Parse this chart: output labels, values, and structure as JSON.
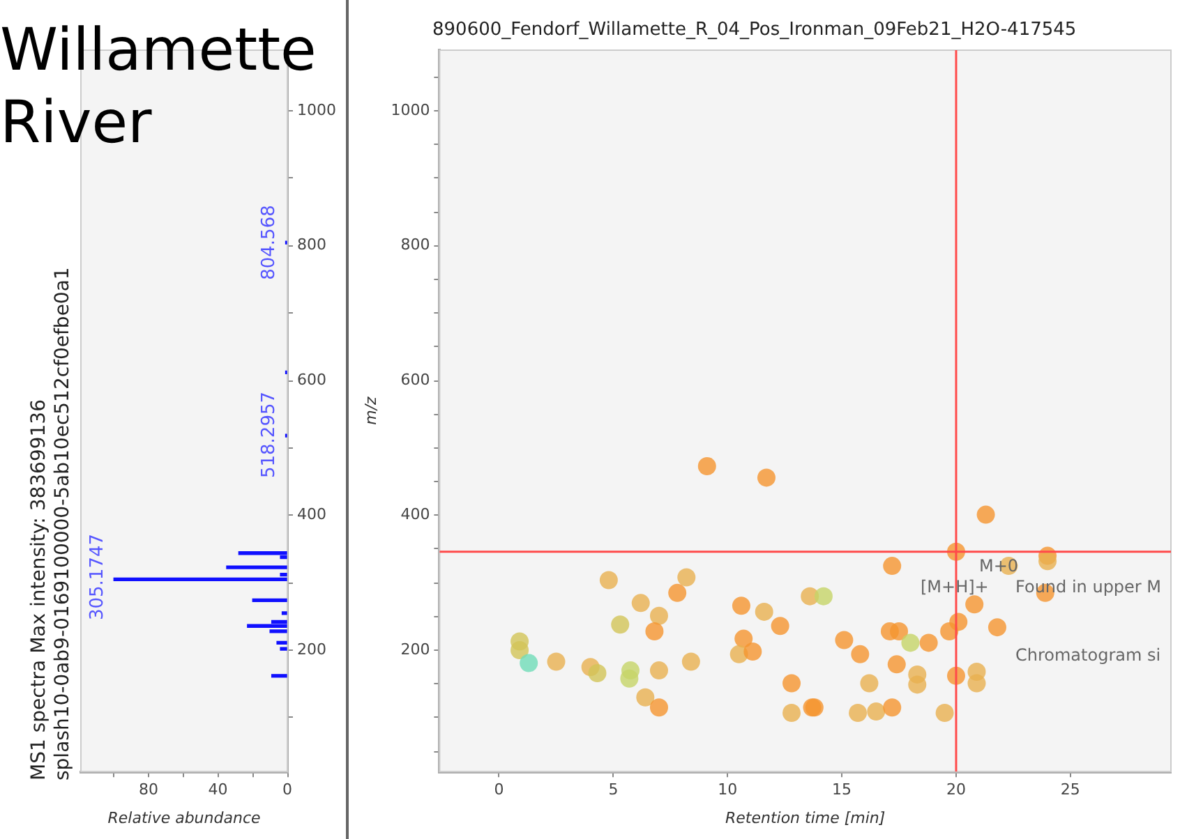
{
  "chart_data": [
    {
      "type": "bar",
      "orientation": "horizontal",
      "title": "Willamette River",
      "xlabel": "Relative abundance",
      "color": "#1010ff",
      "annotations": [
        "MS1 spectra Max intensity: 383699136",
        "splash10-0ab9-0169100000-5ab10ec512cf0efbe0a1",
        "305.1747",
        "518.2957",
        "804.568"
      ],
      "x": [
        162,
        202,
        211,
        228,
        236,
        242,
        255,
        274,
        305.1747,
        312,
        323,
        338,
        344,
        518.2957,
        612,
        804.568
      ],
      "values": [
        9,
        4,
        6,
        10,
        23,
        9,
        3,
        20,
        100,
        4,
        35,
        4,
        28,
        1,
        1,
        1
      ],
      "xlim": [
        119,
        0
      ],
      "xticks": [
        {
          "value": 100,
          "label": null
        },
        80,
        {
          "value": 60,
          "label": null
        },
        40,
        {
          "value": 20,
          "label": null
        },
        0
      ],
      "ylim": [
        20,
        1090
      ],
      "yticks": [
        {
          "value": 100,
          "label": null
        },
        200,
        {
          "value": 300,
          "label": null
        },
        400,
        {
          "value": 500,
          "label": null
        },
        600,
        {
          "value": 700,
          "label": null
        },
        800,
        {
          "value": 900,
          "label": null
        },
        1000
      ]
    },
    {
      "type": "scatter",
      "title": "890600_Fendorf_Willamette_R_04_Pos_Ironman_09Feb21_H2O-417545",
      "xlabel": "Retention time [min]",
      "ylabel": "m/z",
      "marker": "circle",
      "xlim": [
        -2.6,
        29.4
      ],
      "xticks": [
        0,
        5,
        10,
        15,
        20,
        25
      ],
      "ylim": [
        20,
        1090
      ],
      "yticks": [
        {
          "value": 50,
          "label": null
        },
        {
          "value": 100,
          "label": null
        },
        {
          "value": 150,
          "label": null
        },
        200,
        {
          "value": 250,
          "label": null
        },
        {
          "value": 300,
          "label": null
        },
        {
          "value": 350,
          "label": null
        },
        400,
        {
          "value": 450,
          "label": null
        },
        {
          "value": 500,
          "label": null
        },
        {
          "value": 550,
          "label": null
        },
        600,
        {
          "value": 650,
          "label": null
        },
        {
          "value": 700,
          "label": null
        },
        {
          "value": 750,
          "label": null
        },
        800,
        {
          "value": 850,
          "label": null
        },
        {
          "value": 900,
          "label": null
        },
        {
          "value": 950,
          "label": null
        },
        1000,
        {
          "value": 1050,
          "label": null
        }
      ],
      "ref_lines": [
        {
          "axis": "x",
          "value": 20,
          "color": "#ff4a4a"
        },
        {
          "axis": "y",
          "value": 346,
          "color": "#ff4a4a"
        }
      ],
      "annotations": [
        "M+0",
        "[M+H]+",
        "Found in upper M",
        "Chromatogram si"
      ],
      "x": [
        9.1,
        11.7,
        21.3,
        20.0,
        24.0,
        24.0,
        22.3,
        17.2,
        23.9,
        20.8,
        20.1,
        21.8,
        19.7,
        17.1,
        17.5,
        18.0,
        18.8,
        15.1,
        15.8,
        17.4,
        18.3,
        18.3,
        20.0,
        20.9,
        20.9,
        16.2,
        13.8,
        15.7,
        16.5,
        17.2,
        19.5,
        4.8,
        8.2,
        7.8,
        6.2,
        7.0,
        5.3,
        6.8,
        0.9,
        0.9,
        1.3,
        2.5,
        4.0,
        4.3,
        5.75,
        5.7,
        7.0,
        8.4,
        6.4,
        7.0,
        10.6,
        11.6,
        12.3,
        10.7,
        10.5,
        11.1,
        12.8,
        12.8,
        13.7,
        13.6,
        14.2
      ],
      "values": [
        473,
        456,
        401,
        346,
        340,
        332,
        325,
        325,
        285,
        268,
        242,
        234,
        228,
        228,
        228,
        211,
        211,
        215,
        194,
        179,
        164,
        149,
        162,
        168,
        151,
        151,
        115,
        107,
        109,
        115,
        107,
        304,
        308,
        285,
        270,
        251,
        238,
        228,
        213,
        200,
        181,
        183,
        175,
        166,
        170,
        158,
        170,
        183,
        130,
        115,
        266,
        257,
        236,
        217,
        194,
        198,
        151,
        107,
        115,
        280,
        280
      ],
      "colors": [
        "#f59530",
        "#f59530",
        "#f59530",
        "#f59530",
        "#f59530",
        "#e8b050",
        "#e8b050",
        "#f59530",
        "#f59530",
        "#f59530",
        "#f59530",
        "#f59530",
        "#f59530",
        "#f59530",
        "#f59530",
        "#c5d468",
        "#f59530",
        "#f59530",
        "#f59530",
        "#f59530",
        "#e8b050",
        "#e8b050",
        "#f59530",
        "#e8b050",
        "#e8b050",
        "#e8b050",
        "#f59530",
        "#e8b050",
        "#e8b050",
        "#f59530",
        "#e8b050",
        "#e8b050",
        "#e8b050",
        "#f59530",
        "#e8b050",
        "#e8b050",
        "#d2c458",
        "#f59530",
        "#d2c458",
        "#d2c458",
        "#6fdcb8",
        "#e8b050",
        "#e8b050",
        "#d2c458",
        "#c5d468",
        "#c5d468",
        "#e8b050",
        "#e8b050",
        "#e8b050",
        "#f59530",
        "#f59530",
        "#e8b050",
        "#f59530",
        "#f59530",
        "#e8b050",
        "#f59530",
        "#f59530",
        "#e8b050",
        "#f59530",
        "#e8b050",
        "#c5d468"
      ]
    }
  ]
}
